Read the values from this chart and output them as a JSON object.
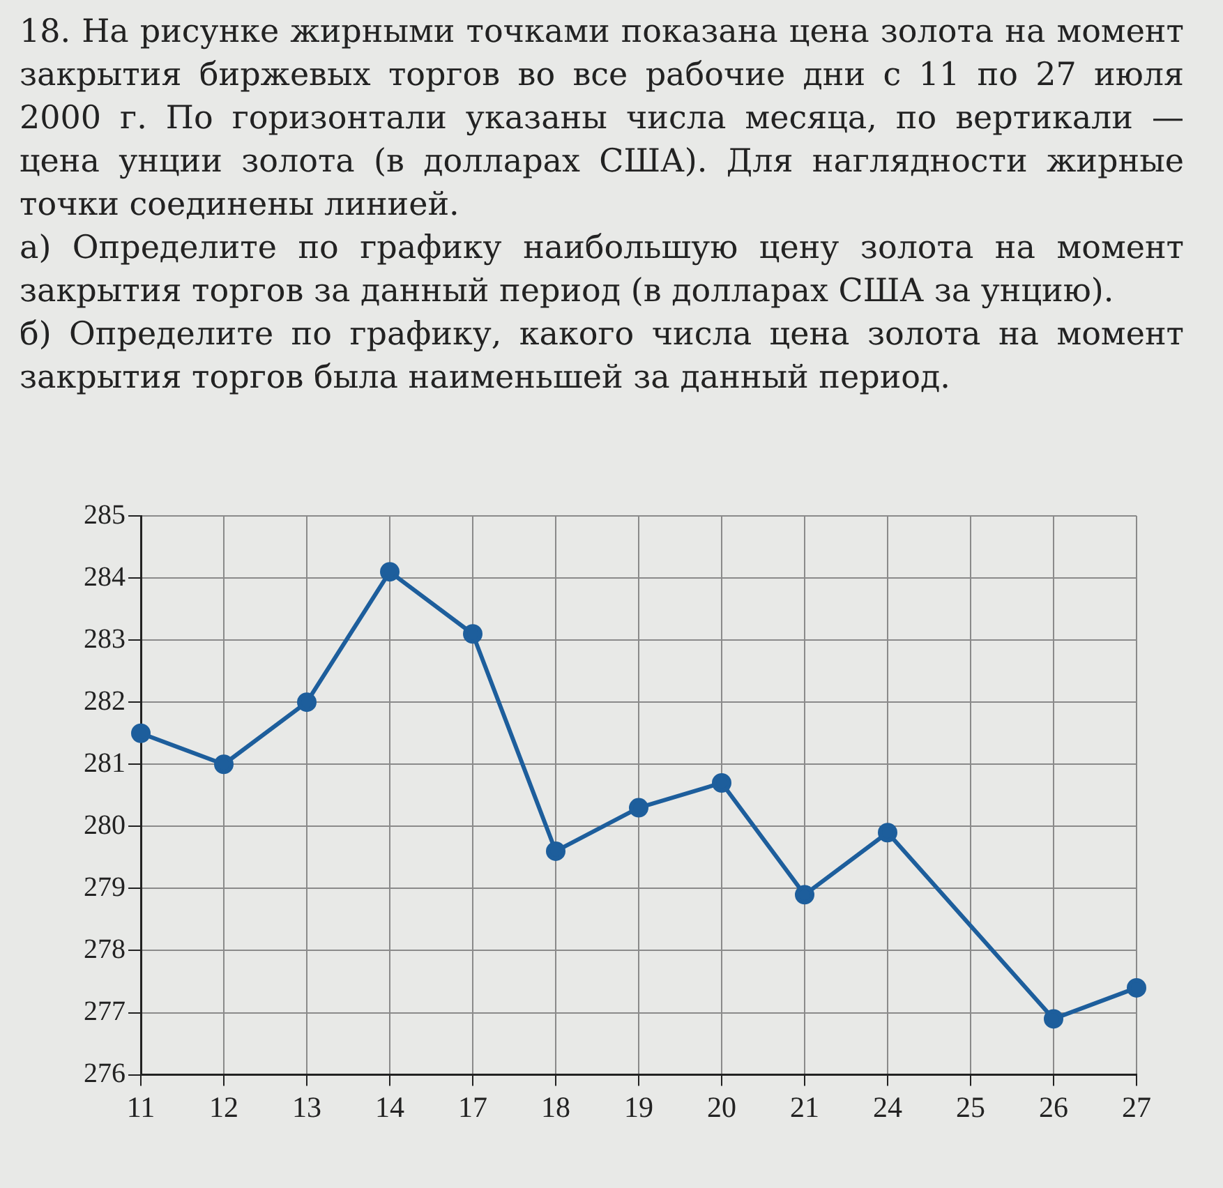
{
  "chart_data": {
    "type": "line",
    "title": "18. На рисунке жирными точками показана цена золота на момент закрытия биржевых торгов во все рабочие дни с 11 по 27 июля 2000 г. По горизонтали указаны числа месяца, по вертикали — цена унции золота (в долларах США). Для наглядности жирные точки соединены линией.",
    "annotations": [
      "а) Определите по графику наибольшую цену золота на момент закрытия торгов за данный период (в долларах США за унцию).",
      "б) Определите по графику, какого числа цена золота на момент закрытия торгов была наименьшей за данный период."
    ],
    "categories": [
      "11",
      "12",
      "13",
      "14",
      "17",
      "18",
      "19",
      "20",
      "21",
      "24",
      "25",
      "26",
      "27"
    ],
    "series": [
      {
        "color": "#1d5e9c",
        "values": [
          281.5,
          281.0,
          282.0,
          284.1,
          283.1,
          279.6,
          280.3,
          280.7,
          278.9,
          279.9,
          null,
          276.9,
          277.4
        ]
      }
    ],
    "ylim": [
      276,
      285
    ],
    "yticks": [
      276,
      277,
      278,
      279,
      280,
      281,
      282,
      283,
      284,
      285
    ],
    "grid": true,
    "marker": "circle",
    "line_style": "solid"
  }
}
